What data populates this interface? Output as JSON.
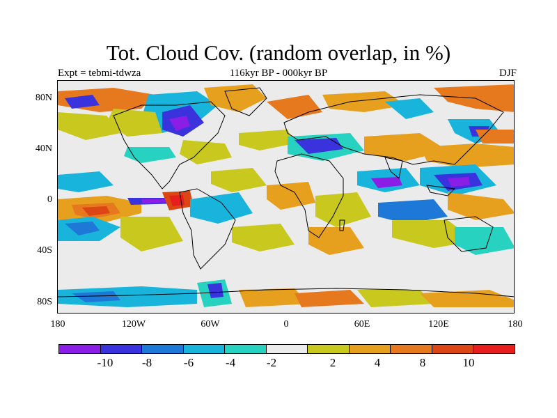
{
  "title": "Tot. Cloud Cov. (random overlap, in %)",
  "experiment_label": "Expt = tebmi-tdwza",
  "period_label": "116kyr BP - 000kyr BP",
  "season_label": "DJF",
  "lat_labels": [
    "80N",
    "40N",
    "0",
    "40S",
    "80S"
  ],
  "lon_labels": [
    "180",
    "120W",
    "60W",
    "0",
    "60E",
    "120E",
    "180"
  ],
  "colorbar": {
    "colors": [
      "#8a1ee6",
      "#3a32dc",
      "#1e78d8",
      "#18b4dc",
      "#28d2c0",
      "#ebebeb",
      "#c8c81e",
      "#e6a01e",
      "#e6781e",
      "#dc4614",
      "#e61e1e"
    ],
    "labels": [
      "-10",
      "-8",
      "-6",
      "-4",
      "-2",
      "2",
      "4",
      "8",
      "10"
    ]
  },
  "fill_color": "#ebebeb",
  "coastline_color": "#000000"
}
